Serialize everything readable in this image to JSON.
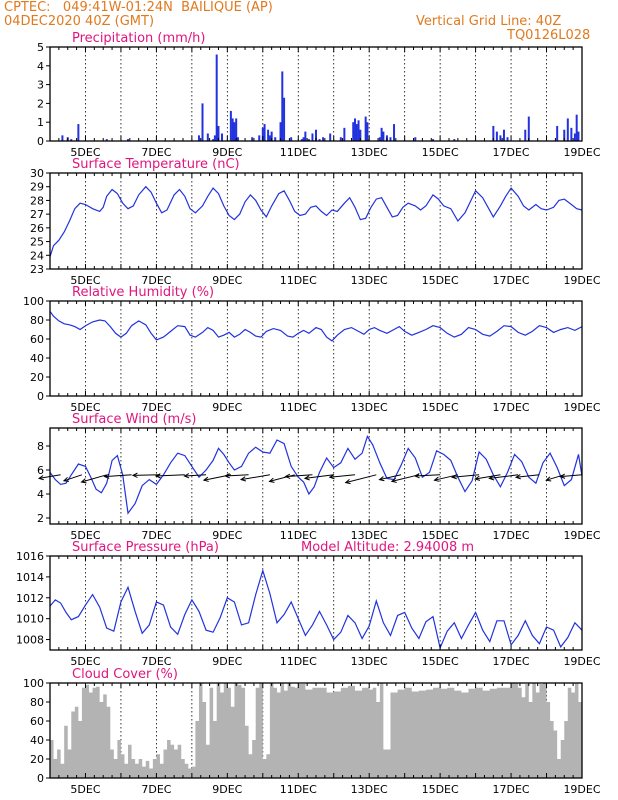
{
  "header": {
    "left_line1": "CPTEC:   049:41W-01:24N  BAILIQUE (AP)",
    "left_line2": "04DEC2020 40Z (GMT)",
    "right_line1": "Vertical Grid Line: 40Z",
    "right_line2": "TQ0126L028"
  },
  "colors": {
    "header": "#e07a1f",
    "title": "#e0157f",
    "line": "#2233dd",
    "cloud": "#b3b3b3",
    "wind_arrow": "#000000"
  },
  "chart_data": [
    {
      "type": "bar",
      "title": "Precipitation (mm/h)",
      "x_tick_labels": [
        "5DEC",
        "7DEC",
        "9DEC",
        "11DEC",
        "13DEC",
        "15DEC",
        "17DEC",
        "19DEC"
      ],
      "x_range_days": [
        4.0,
        19.0
      ],
      "ylim": [
        0,
        5
      ],
      "y_ticks": [
        0,
        1,
        2,
        3,
        4,
        5
      ],
      "x": [
        4.35,
        4.5,
        4.6,
        4.8,
        5.6,
        6.2,
        8.2,
        8.3,
        8.45,
        8.6,
        8.65,
        8.7,
        8.75,
        8.85,
        9.1,
        9.15,
        9.2,
        9.25,
        9.3,
        9.7,
        9.9,
        10.0,
        10.05,
        10.15,
        10.2,
        10.25,
        10.35,
        10.5,
        10.55,
        10.6,
        10.8,
        11.1,
        11.15,
        11.2,
        11.3,
        11.4,
        11.5,
        11.6,
        11.7,
        11.9,
        12.2,
        12.3,
        12.55,
        12.6,
        12.65,
        12.7,
        12.75,
        12.9,
        12.95,
        13.3,
        13.35,
        13.4,
        13.5,
        13.6,
        13.7,
        14.3,
        14.8,
        15.4,
        16.5,
        16.6,
        16.7,
        16.8,
        16.9,
        17.4,
        17.5,
        18.3,
        18.5,
        18.6,
        18.7,
        18.8,
        18.85,
        18.9
      ],
      "values": [
        0.3,
        0.2,
        0.1,
        0.9,
        0.1,
        0.1,
        0.3,
        2.0,
        0.4,
        0.1,
        0.3,
        4.6,
        0.8,
        0.4,
        1.6,
        1.2,
        1.0,
        1.2,
        0.2,
        0.2,
        0.3,
        0.7,
        0.9,
        0.6,
        0.3,
        0.5,
        0.2,
        1.0,
        3.7,
        2.3,
        0.2,
        0.1,
        0.2,
        0.5,
        0.1,
        0.4,
        0.6,
        0.1,
        0.2,
        0.4,
        0.2,
        0.7,
        1.0,
        1.2,
        0.9,
        1.1,
        0.6,
        1.3,
        1.0,
        0.2,
        0.7,
        0.5,
        0.3,
        0.2,
        0.9,
        0.2,
        0.1,
        0.1,
        0.8,
        0.5,
        0.3,
        0.6,
        0.2,
        0.6,
        1.3,
        0.8,
        0.6,
        1.2,
        0.7,
        0.4,
        1.4,
        0.5
      ]
    },
    {
      "type": "line",
      "title": "Surface Temperature (nC)",
      "x_tick_labels": [
        "5DEC",
        "7DEC",
        "9DEC",
        "11DEC",
        "13DEC",
        "15DEC",
        "17DEC",
        "19DEC"
      ],
      "x_range_days": [
        4.0,
        19.0
      ],
      "ylim": [
        23,
        30
      ],
      "y_ticks": [
        23,
        24,
        25,
        26,
        27,
        28,
        29,
        30
      ],
      "x": [
        4.0,
        4.1,
        4.25,
        4.4,
        4.55,
        4.7,
        4.85,
        5.0,
        5.2,
        5.4,
        5.5,
        5.6,
        5.75,
        5.9,
        6.05,
        6.2,
        6.35,
        6.5,
        6.7,
        6.85,
        7.0,
        7.15,
        7.3,
        7.5,
        7.65,
        7.8,
        7.95,
        8.1,
        8.3,
        8.45,
        8.6,
        8.75,
        8.9,
        9.05,
        9.2,
        9.35,
        9.5,
        9.65,
        9.8,
        9.95,
        10.1,
        10.25,
        10.45,
        10.6,
        10.75,
        10.9,
        11.05,
        11.2,
        11.35,
        11.5,
        11.65,
        11.8,
        11.95,
        12.1,
        12.3,
        12.45,
        12.6,
        12.75,
        12.9,
        13.05,
        13.2,
        13.35,
        13.5,
        13.65,
        13.8,
        13.95,
        14.1,
        14.3,
        14.45,
        14.6,
        14.8,
        14.95,
        15.1,
        15.3,
        15.5,
        15.7,
        15.85,
        16.0,
        16.2,
        16.35,
        16.5,
        16.7,
        16.85,
        17.0,
        17.2,
        17.35,
        17.5,
        17.7,
        17.85,
        18.0,
        18.2,
        18.35,
        18.5,
        18.7,
        18.85,
        19.0
      ],
      "values": [
        23.9,
        24.7,
        25.1,
        25.7,
        26.5,
        27.4,
        27.8,
        27.7,
        27.4,
        27.2,
        27.5,
        28.3,
        28.8,
        28.5,
        27.8,
        27.4,
        27.6,
        28.4,
        29.0,
        28.6,
        27.8,
        27.1,
        27.3,
        28.4,
        28.8,
        28.3,
        27.4,
        27.1,
        27.6,
        28.3,
        28.9,
        28.5,
        27.6,
        26.9,
        26.6,
        27.0,
        27.9,
        28.4,
        28.0,
        27.3,
        26.8,
        27.6,
        28.5,
        28.7,
        28.0,
        27.2,
        26.9,
        27.0,
        27.5,
        27.6,
        27.2,
        26.9,
        27.3,
        27.2,
        27.8,
        28.2,
        27.5,
        26.6,
        26.7,
        27.5,
        28.1,
        28.2,
        27.5,
        26.8,
        26.9,
        27.5,
        27.8,
        27.6,
        27.3,
        27.6,
        28.4,
        28.1,
        27.6,
        27.4,
        26.5,
        27.1,
        27.9,
        28.7,
        28.2,
        27.5,
        26.8,
        27.6,
        28.3,
        28.9,
        28.3,
        27.6,
        27.3,
        27.7,
        27.4,
        27.3,
        27.5,
        28.0,
        28.1,
        27.7,
        27.4,
        27.3
      ]
    },
    {
      "type": "line",
      "title": "Relative Humidity (%)",
      "x_tick_labels": [
        "5DEC",
        "7DEC",
        "9DEC",
        "11DEC",
        "13DEC",
        "15DEC",
        "17DEC",
        "19DEC"
      ],
      "x_range_days": [
        4.0,
        19.0
      ],
      "ylim": [
        0,
        100
      ],
      "y_ticks": [
        0,
        20,
        40,
        60,
        80,
        100
      ],
      "x": [
        4.0,
        4.1,
        4.25,
        4.4,
        4.55,
        4.7,
        4.85,
        5.0,
        5.2,
        5.4,
        5.55,
        5.7,
        5.85,
        6.0,
        6.15,
        6.3,
        6.5,
        6.7,
        6.85,
        7.0,
        7.2,
        7.4,
        7.6,
        7.8,
        7.95,
        8.1,
        8.3,
        8.45,
        8.6,
        8.75,
        8.9,
        9.05,
        9.2,
        9.35,
        9.5,
        9.65,
        9.8,
        9.95,
        10.1,
        10.3,
        10.5,
        10.7,
        10.85,
        11.0,
        11.15,
        11.3,
        11.5,
        11.65,
        11.8,
        11.95,
        12.1,
        12.3,
        12.5,
        12.7,
        12.85,
        13.0,
        13.15,
        13.3,
        13.5,
        13.7,
        13.85,
        14.0,
        14.2,
        14.4,
        14.6,
        14.8,
        15.0,
        15.2,
        15.4,
        15.6,
        15.8,
        16.0,
        16.2,
        16.4,
        16.6,
        16.8,
        17.0,
        17.2,
        17.4,
        17.6,
        17.8,
        18.0,
        18.2,
        18.4,
        18.6,
        18.8,
        19.0
      ],
      "values": [
        89,
        84,
        79,
        76,
        75,
        73,
        70,
        74,
        78,
        80,
        79,
        73,
        66,
        62,
        66,
        74,
        79,
        75,
        66,
        59,
        62,
        68,
        74,
        73,
        64,
        62,
        67,
        72,
        69,
        62,
        64,
        67,
        62,
        65,
        70,
        67,
        63,
        62,
        68,
        71,
        69,
        63,
        62,
        66,
        69,
        66,
        72,
        70,
        62,
        58,
        64,
        70,
        72,
        68,
        65,
        70,
        72,
        69,
        66,
        70,
        73,
        68,
        64,
        67,
        70,
        74,
        72,
        66,
        62,
        65,
        72,
        70,
        65,
        63,
        68,
        74,
        73,
        67,
        64,
        68,
        74,
        72,
        67,
        70,
        72,
        69,
        73
      ]
    },
    {
      "type": "line",
      "title": "Surface Wind (m/s)",
      "x_tick_labels": [
        "5DEC",
        "7DEC",
        "9DEC",
        "11DEC",
        "13DEC",
        "15DEC",
        "17DEC",
        "19DEC"
      ],
      "x_range_days": [
        4.0,
        19.0
      ],
      "ylim": [
        1.5,
        9.5
      ],
      "y_ticks": [
        2,
        4,
        6,
        8
      ],
      "x": [
        4.0,
        4.15,
        4.3,
        4.45,
        4.6,
        4.8,
        5.0,
        5.15,
        5.3,
        5.45,
        5.6,
        5.75,
        5.9,
        6.05,
        6.2,
        6.4,
        6.6,
        6.8,
        7.0,
        7.2,
        7.4,
        7.6,
        7.8,
        8.0,
        8.2,
        8.4,
        8.6,
        8.75,
        8.9,
        9.05,
        9.2,
        9.4,
        9.6,
        9.8,
        10.0,
        10.2,
        10.4,
        10.6,
        10.8,
        11.0,
        11.15,
        11.3,
        11.45,
        11.6,
        11.8,
        12.0,
        12.2,
        12.4,
        12.6,
        12.8,
        12.95,
        13.1,
        13.3,
        13.5,
        13.7,
        13.9,
        14.1,
        14.3,
        14.5,
        14.7,
        14.9,
        15.1,
        15.3,
        15.5,
        15.7,
        15.9,
        16.1,
        16.3,
        16.5,
        16.7,
        16.9,
        17.1,
        17.3,
        17.5,
        17.7,
        17.9,
        18.1,
        18.3,
        18.5,
        18.7,
        18.9,
        19.0
      ],
      "values": [
        5.8,
        5.2,
        4.8,
        4.9,
        5.6,
        6.5,
        6.3,
        5.4,
        4.4,
        4.1,
        4.9,
        6.8,
        7.2,
        5.6,
        2.4,
        3.2,
        4.7,
        5.2,
        4.8,
        5.6,
        6.6,
        7.4,
        7.2,
        6.3,
        5.4,
        6.0,
        6.8,
        7.8,
        7.3,
        6.6,
        6.0,
        6.3,
        7.4,
        7.9,
        7.5,
        7.4,
        8.5,
        8.2,
        6.3,
        5.4,
        5.0,
        4.0,
        4.6,
        5.8,
        7.0,
        6.2,
        6.6,
        7.8,
        6.9,
        7.4,
        8.8,
        8.1,
        6.6,
        5.3,
        5.2,
        6.4,
        7.8,
        7.0,
        5.4,
        5.8,
        7.6,
        7.3,
        6.8,
        5.4,
        4.2,
        5.1,
        7.5,
        6.9,
        5.6,
        4.6,
        5.8,
        7.3,
        6.7,
        5.4,
        4.9,
        6.6,
        7.4,
        6.2,
        4.7,
        5.2,
        7.3,
        5.5
      ]
    },
    {
      "type": "line",
      "title": "Surface Pressure (hPa)",
      "annotation": "Model Altitude: 2.94008 m",
      "x_tick_labels": [
        "5DEC",
        "7DEC",
        "9DEC",
        "11DEC",
        "13DEC",
        "15DEC",
        "17DEC",
        "19DEC"
      ],
      "x_range_days": [
        4.0,
        19.0
      ],
      "ylim": [
        1007,
        1016
      ],
      "y_ticks": [
        1008,
        1010,
        1012,
        1014,
        1016
      ],
      "x": [
        4.0,
        4.15,
        4.3,
        4.45,
        4.6,
        4.8,
        5.0,
        5.2,
        5.4,
        5.6,
        5.8,
        6.0,
        6.2,
        6.4,
        6.6,
        6.8,
        7.0,
        7.2,
        7.4,
        7.6,
        7.8,
        8.0,
        8.2,
        8.4,
        8.6,
        8.8,
        9.0,
        9.2,
        9.4,
        9.6,
        9.8,
        10.0,
        10.2,
        10.4,
        10.6,
        10.8,
        11.0,
        11.2,
        11.4,
        11.6,
        11.8,
        12.0,
        12.2,
        12.4,
        12.6,
        12.8,
        13.0,
        13.2,
        13.4,
        13.6,
        13.8,
        14.0,
        14.2,
        14.4,
        14.6,
        14.8,
        15.0,
        15.2,
        15.4,
        15.6,
        15.8,
        16.0,
        16.2,
        16.4,
        16.6,
        16.8,
        17.0,
        17.2,
        17.4,
        17.6,
        17.8,
        18.0,
        18.2,
        18.4,
        18.6,
        18.8,
        19.0
      ],
      "values": [
        1011.2,
        1011.8,
        1011.5,
        1010.6,
        1009.9,
        1010.2,
        1011.3,
        1012.3,
        1011.1,
        1009.1,
        1008.8,
        1011.6,
        1013.0,
        1010.7,
        1008.6,
        1009.4,
        1011.6,
        1011.3,
        1009.2,
        1008.5,
        1010.4,
        1011.8,
        1010.7,
        1008.9,
        1008.7,
        1010.1,
        1012.0,
        1011.6,
        1009.4,
        1009.6,
        1012.3,
        1014.6,
        1012.4,
        1009.6,
        1010.4,
        1011.6,
        1010.0,
        1008.4,
        1009.4,
        1010.7,
        1009.4,
        1008.0,
        1008.7,
        1010.3,
        1009.6,
        1008.1,
        1009.3,
        1011.7,
        1009.6,
        1008.4,
        1010.3,
        1010.6,
        1009.1,
        1008.1,
        1009.7,
        1010.2,
        1007.2,
        1008.8,
        1009.6,
        1008.1,
        1009.4,
        1010.6,
        1008.9,
        1007.8,
        1009.8,
        1009.8,
        1007.5,
        1008.4,
        1009.8,
        1008.4,
        1007.6,
        1009.2,
        1008.9,
        1007.3,
        1008.2,
        1009.6,
        1008.9
      ]
    },
    {
      "type": "area",
      "title": "Cloud Cover (%)",
      "x_tick_labels": [
        "5DEC",
        "7DEC",
        "9DEC",
        "11DEC",
        "13DEC",
        "15DEC",
        "17DEC",
        "19DEC"
      ],
      "x_range_days": [
        4.0,
        19.0
      ],
      "ylim": [
        0,
        100
      ],
      "y_ticks": [
        0,
        20,
        40,
        60,
        80,
        100
      ],
      "x": [
        4.0,
        4.1,
        4.2,
        4.3,
        4.4,
        4.5,
        4.6,
        4.7,
        4.8,
        4.9,
        5.0,
        5.1,
        5.2,
        5.3,
        5.4,
        5.5,
        5.6,
        5.7,
        5.8,
        5.9,
        6.0,
        6.1,
        6.2,
        6.3,
        6.4,
        6.5,
        6.6,
        6.7,
        6.8,
        6.9,
        7.0,
        7.1,
        7.2,
        7.3,
        7.4,
        7.5,
        7.6,
        7.7,
        7.8,
        7.9,
        8.0,
        8.1,
        8.2,
        8.3,
        8.4,
        8.5,
        8.6,
        8.7,
        8.8,
        8.9,
        9.0,
        9.1,
        9.2,
        9.3,
        9.4,
        9.5,
        9.6,
        9.7,
        9.8,
        9.9,
        10.0,
        10.1,
        10.2,
        10.3,
        10.4,
        10.5,
        10.6,
        10.7,
        10.8,
        10.9,
        11.0,
        11.2,
        11.4,
        11.6,
        11.8,
        12.0,
        12.2,
        12.4,
        12.6,
        12.8,
        13.0,
        13.1,
        13.2,
        13.3,
        13.4,
        13.6,
        13.8,
        14.0,
        14.2,
        14.4,
        14.6,
        14.8,
        15.0,
        15.2,
        15.4,
        15.6,
        15.8,
        16.0,
        16.2,
        16.4,
        16.6,
        16.8,
        17.0,
        17.2,
        17.3,
        17.4,
        17.5,
        17.6,
        17.7,
        17.8,
        17.9,
        18.0,
        18.1,
        18.2,
        18.3,
        18.4,
        18.5,
        18.6,
        18.7,
        18.8,
        18.9,
        19.0
      ],
      "values": [
        40,
        20,
        30,
        15,
        55,
        30,
        70,
        75,
        60,
        95,
        98,
        90,
        95,
        96,
        80,
        88,
        75,
        30,
        20,
        40,
        25,
        15,
        35,
        20,
        15,
        20,
        12,
        18,
        10,
        20,
        25,
        15,
        30,
        40,
        35,
        30,
        35,
        20,
        15,
        10,
        12,
        60,
        100,
        80,
        35,
        95,
        60,
        100,
        90,
        100,
        95,
        75,
        100,
        98,
        95,
        55,
        25,
        40,
        95,
        100,
        20,
        25,
        100,
        95,
        90,
        100,
        92,
        100,
        96,
        95,
        99,
        93,
        95,
        95,
        90,
        91,
        95,
        97,
        92,
        95,
        93,
        95,
        80,
        100,
        30,
        90,
        93,
        95,
        91,
        92,
        93,
        95,
        94,
        95,
        92,
        90,
        94,
        95,
        92,
        94,
        95,
        95,
        100,
        95,
        85,
        99,
        80,
        100,
        90,
        99,
        100,
        80,
        60,
        50,
        20,
        40,
        60,
        95,
        90,
        100,
        80,
        95
      ]
    }
  ],
  "wind_arrows": {
    "x": [
      4.3,
      4.9,
      5.6,
      6.3,
      7.1,
      7.8,
      8.4,
      9.1,
      9.6,
      10.2,
      10.9,
      11.4,
      12.0,
      12.6,
      13.2,
      13.9,
      14.4,
      15.0,
      15.5,
      16.1,
      16.7,
      17.2,
      17.8,
      18.5,
      19.0
    ],
    "u": [
      -1.2,
      -1.0,
      -1.4,
      -1.5,
      -1.5,
      -1.6,
      -1.2,
      -1.5,
      -1.3,
      -1.6,
      -1.4,
      -1.5,
      -1.6,
      -1.4,
      -1.7,
      -1.2,
      -1.5,
      -1.4,
      -1.3,
      -1.5,
      -1.4,
      -1.6,
      -1.3,
      -1.0,
      -1.2
    ],
    "v": [
      -0.6,
      -1.0,
      -1.2,
      -0.3,
      -0.1,
      -0.2,
      -0.2,
      -0.9,
      -0.2,
      -0.8,
      -1.1,
      -0.3,
      -0.6,
      -0.4,
      -1.3,
      -0.8,
      -1.1,
      -0.2,
      -0.9,
      -0.4,
      -0.7,
      -0.6,
      -0.4,
      -0.9,
      -0.3
    ]
  }
}
